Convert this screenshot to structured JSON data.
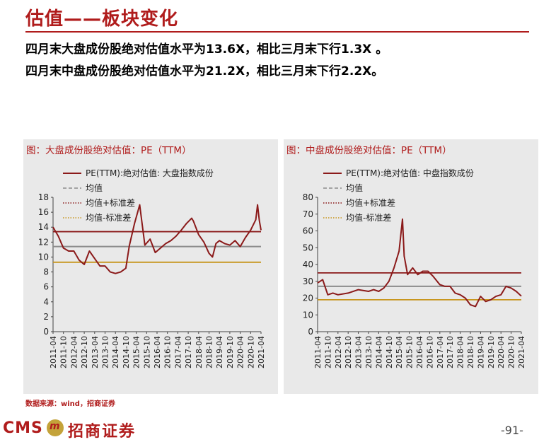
{
  "header": {
    "title": "估值——板块变化",
    "line1": "四月末大盘成份股绝对估值水平为13.6X，相比三月末下行1.3X 。",
    "line2": "四月末中盘成份股绝对估值水平为21.2X，相比三月末下行2.2X。"
  },
  "footer": {
    "source": "数据来源：wind，招商证券",
    "logo_text": "CMS",
    "logo_mark": "m",
    "brand": "招商证券",
    "page": "-91-"
  },
  "colors": {
    "accent": "#b01c1c",
    "series_main": "#8b1a1a",
    "mean": "#8c8c8c",
    "upper": "#8b1a1a",
    "lower": "#c8961e"
  },
  "chart_data": [
    {
      "type": "line",
      "title": "图：大盘成份股绝对估值：PE（TTM）",
      "legend": {
        "placement": "top-left",
        "entries": [
          "PE(TTM):绝对估值: 大盘指数成份",
          "均值",
          "均值+标准差",
          "均值-标准差"
        ]
      },
      "ylim": [
        0,
        18
      ],
      "yticks": [
        "0",
        "2",
        "4",
        "6",
        "8",
        "10",
        "12",
        "14",
        "16",
        "18"
      ],
      "xticks": [
        "2011-04",
        "2011-10",
        "2012-04",
        "2012-10",
        "2013-04",
        "2013-10",
        "2014-04",
        "2014-10",
        "2015-04",
        "2015-10",
        "2016-04",
        "2016-10",
        "2017-04",
        "2017-10",
        "2018-04",
        "2018-10",
        "2019-04",
        "2019-10",
        "2020-04",
        "2020-10",
        "2021-04"
      ],
      "series": [
        {
          "name": "PE(TTM):绝对估值: 大盘指数成份",
          "style": "solid",
          "x": [
            "2011-04",
            "2011-07",
            "2011-10",
            "2012-01",
            "2012-04",
            "2012-07",
            "2012-10",
            "2013-01",
            "2013-04",
            "2013-07",
            "2013-10",
            "2014-01",
            "2014-04",
            "2014-07",
            "2014-10",
            "2014-12",
            "2015-03",
            "2015-06",
            "2015-07",
            "2015-09",
            "2015-12",
            "2016-03",
            "2016-06",
            "2016-09",
            "2016-12",
            "2017-03",
            "2017-06",
            "2017-09",
            "2017-12",
            "2018-01",
            "2018-04",
            "2018-07",
            "2018-10",
            "2018-12",
            "2019-02",
            "2019-04",
            "2019-07",
            "2019-10",
            "2020-01",
            "2020-04",
            "2020-07",
            "2020-10",
            "2021-01",
            "2021-02",
            "2021-03",
            "2021-04"
          ],
          "y": [
            14.0,
            12.8,
            11.2,
            10.8,
            10.8,
            9.6,
            9.0,
            10.8,
            9.8,
            8.8,
            8.8,
            8.0,
            7.8,
            8.0,
            8.5,
            11.5,
            14.5,
            17.0,
            15.2,
            11.6,
            12.4,
            10.6,
            11.2,
            11.8,
            12.2,
            12.8,
            13.6,
            14.5,
            15.2,
            14.8,
            13.0,
            12.0,
            10.5,
            10.0,
            11.8,
            12.2,
            11.8,
            11.6,
            12.2,
            11.4,
            12.6,
            13.6,
            15.0,
            17.0,
            14.9,
            13.6
          ]
        },
        {
          "name": "均值",
          "style": "dashed",
          "value": 11.4
        },
        {
          "name": "均值+标准差",
          "style": "dotted",
          "value": 13.4
        },
        {
          "name": "均值-标准差",
          "style": "dotted",
          "value": 9.3
        }
      ]
    },
    {
      "type": "line",
      "title": "图：中盘成份股绝对估值：PE（TTM）",
      "legend": {
        "placement": "top-left",
        "entries": [
          "PE(TTM):绝对估值: 中盘指数成份",
          "均值",
          "均值+标准差",
          "均值-标准差"
        ]
      },
      "ylim": [
        0,
        80
      ],
      "yticks": [
        "0",
        "10",
        "20",
        "30",
        "40",
        "50",
        "60",
        "70",
        "80"
      ],
      "xticks": [
        "2011-04",
        "2011-10",
        "2012-04",
        "2012-10",
        "2013-04",
        "2013-10",
        "2014-04",
        "2014-10",
        "2015-04",
        "2015-10",
        "2016-04",
        "2016-10",
        "2017-04",
        "2017-10",
        "2018-04",
        "2018-10",
        "2019-04",
        "2019-10",
        "2020-04",
        "2020-10",
        "2021-04"
      ],
      "series": [
        {
          "name": "PE(TTM):绝对估值: 中盘指数成份",
          "style": "solid",
          "x": [
            "2011-04",
            "2011-07",
            "2011-10",
            "2012-01",
            "2012-04",
            "2012-10",
            "2013-04",
            "2013-10",
            "2014-01",
            "2014-04",
            "2014-07",
            "2014-10",
            "2015-01",
            "2015-04",
            "2015-06",
            "2015-07",
            "2015-09",
            "2015-12",
            "2016-03",
            "2016-06",
            "2016-09",
            "2016-12",
            "2017-04",
            "2017-07",
            "2017-10",
            "2018-01",
            "2018-04",
            "2018-07",
            "2018-10",
            "2019-01",
            "2019-04",
            "2019-07",
            "2019-10",
            "2020-01",
            "2020-04",
            "2020-07",
            "2020-10",
            "2021-01",
            "2021-04"
          ],
          "y": [
            29,
            31,
            22,
            23,
            22,
            23,
            25,
            24,
            25,
            24,
            26,
            30,
            38,
            48,
            67,
            45,
            34,
            38,
            34,
            36,
            36,
            33,
            28,
            27,
            27,
            23,
            22,
            20,
            16,
            15,
            21,
            18,
            19,
            21,
            22,
            27,
            26,
            24,
            21.2
          ]
        },
        {
          "name": "均值",
          "style": "dashed",
          "value": 27
        },
        {
          "name": "均值+标准差",
          "style": "dotted",
          "value": 35
        },
        {
          "name": "均值-标准差",
          "style": "dotted",
          "value": 19
        }
      ]
    }
  ]
}
